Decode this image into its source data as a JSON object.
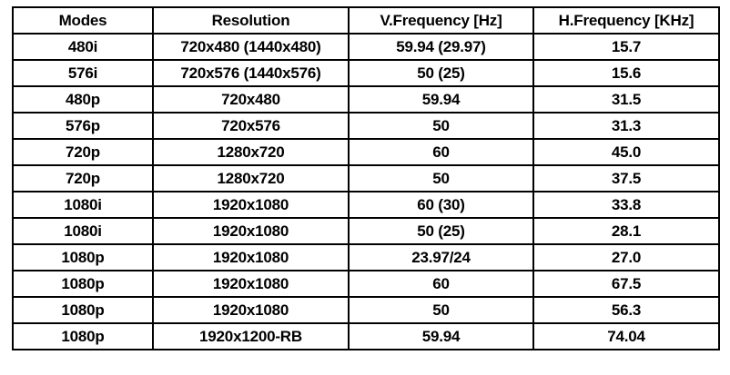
{
  "table": {
    "columns": [
      "Modes",
      "Resolution",
      "V.Frequency [Hz]",
      "H.Frequency [KHz]"
    ],
    "rows": [
      [
        "480i",
        "720x480 (1440x480)",
        "59.94 (29.97)",
        "15.7"
      ],
      [
        "576i",
        "720x576 (1440x576)",
        "50 (25)",
        "15.6"
      ],
      [
        "480p",
        "720x480",
        "59.94",
        "31.5"
      ],
      [
        "576p",
        "720x576",
        "50",
        "31.3"
      ],
      [
        "720p",
        "1280x720",
        "60",
        "45.0"
      ],
      [
        "720p",
        "1280x720",
        "50",
        "37.5"
      ],
      [
        "1080i",
        "1920x1080",
        "60 (30)",
        "33.8"
      ],
      [
        "1080i",
        "1920x1080",
        "50 (25)",
        "28.1"
      ],
      [
        "1080p",
        "1920x1080",
        "23.97/24",
        "27.0"
      ],
      [
        "1080p",
        "1920x1080",
        "60",
        "67.5"
      ],
      [
        "1080p",
        "1920x1080",
        "50",
        "56.3"
      ],
      [
        "1080p",
        "1920x1200-RB",
        "59.94",
        "74.04"
      ]
    ],
    "colors": {
      "border": "#000000",
      "text": "#000000",
      "background": "#ffffff"
    }
  }
}
